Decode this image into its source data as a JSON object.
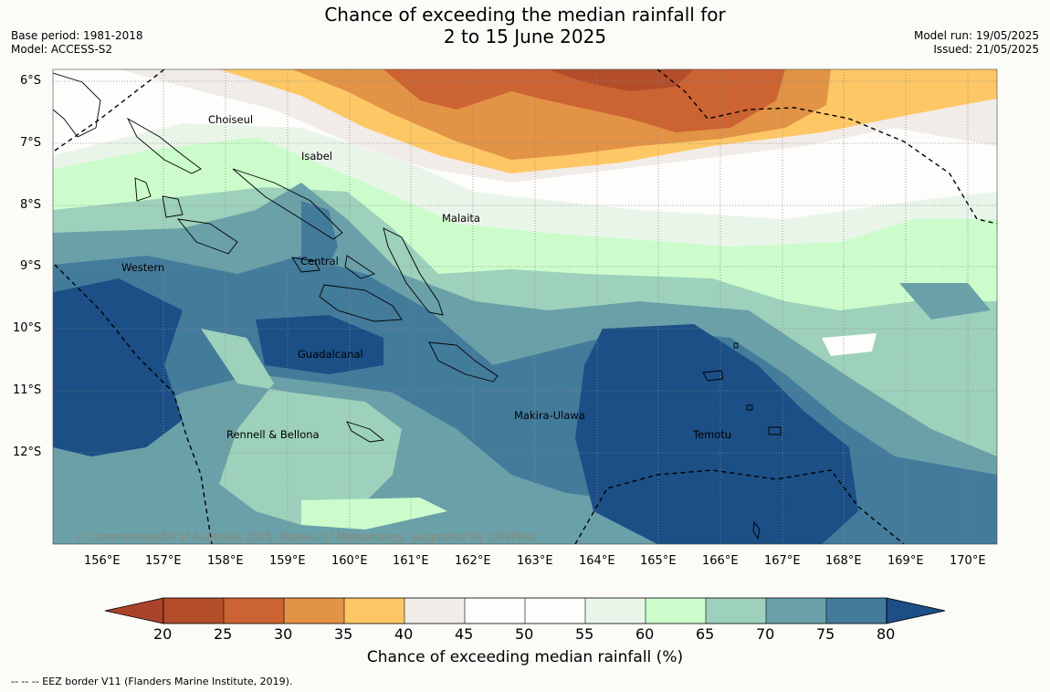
{
  "title": {
    "line1": "Chance of exceeding the median rainfall for",
    "line2": "2 to 15 June 2025"
  },
  "meta_left": {
    "base_period": "Base period: 1981-2018",
    "model": "Model: ACCESS-S2"
  },
  "meta_right": {
    "model_run": "Model run: 19/05/2025",
    "issued": "Issued: 21/05/2025"
  },
  "map": {
    "latitude_labels": [
      "6°S",
      "7°S",
      "8°S",
      "9°S",
      "10°S",
      "11°S",
      "12°S"
    ],
    "longitude_labels": [
      "156°E",
      "157°E",
      "158°E",
      "159°E",
      "160°E",
      "161°E",
      "162°E",
      "163°E",
      "164°E",
      "165°E",
      "166°E",
      "167°E",
      "168°E",
      "169°E",
      "170°E"
    ],
    "provinces": [
      "Choiseul",
      "Isabel",
      "Malaita",
      "Central",
      "Western",
      "Guadalcanal",
      "Makira-Ulawa",
      "Rennell & Bellona",
      "Temotu"
    ],
    "copyright": "© Commonwealth of Australia 2025, Bureau of Meteorology, supported by COSPPac",
    "eez_style": "dashed-black"
  },
  "colorbar": {
    "ticks": [
      "20",
      "25",
      "30",
      "35",
      "40",
      "45",
      "50",
      "55",
      "60",
      "65",
      "70",
      "75",
      "80"
    ],
    "colors": [
      "#a9432a",
      "#b34d2a",
      "#cc6332",
      "#e29345",
      "#fec765",
      "#f1ece8",
      "#fdfdfb",
      "#fdfdfb",
      "#eaf5ea",
      "#ccfccc",
      "#9dd1bb",
      "#6aa0a8",
      "#437b9b",
      "#1b4f86"
    ],
    "label": "Chance of exceeding median rainfall (%)"
  },
  "footnote": "--  --  -- EEZ border V11 (Flanders Marine Institute, 2019)."
}
